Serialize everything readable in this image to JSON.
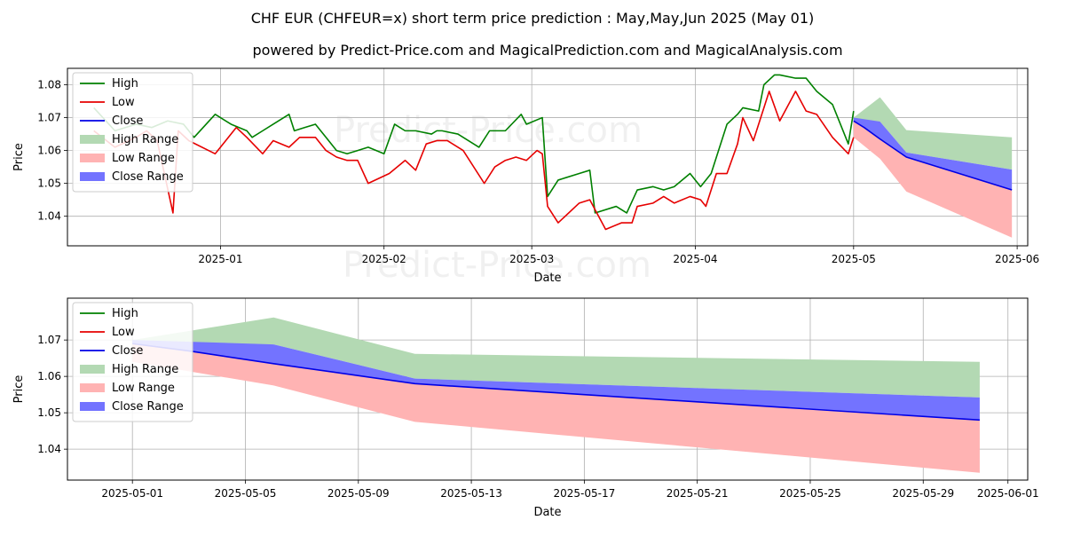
{
  "header": {
    "title": "CHF EUR (CHFEUR=x) short term price prediction : May,May,Jun 2025 (May 01)",
    "subtitle": "powered by Predict-Price.com and MagicalPrediction.com and MagicalAnalysis.com"
  },
  "watermark": "Predict-Price.com",
  "colors": {
    "high": "#008000",
    "low": "#e60000",
    "close": "#0000e6",
    "high_range": "#b3d9b3",
    "low_range": "#ffb3b3",
    "close_range": "#7373ff"
  },
  "chart_data": [
    {
      "type": "line",
      "xlabel": "Date",
      "ylabel": "Price",
      "ylim": [
        1.031,
        1.085
      ],
      "legend_position": "top-left",
      "grid": true,
      "x_ticks": [
        "2025-01",
        "2025-02",
        "2025-03",
        "2025-04",
        "2025-05",
        "2025-06"
      ],
      "y_ticks": [
        1.04,
        1.05,
        1.06,
        1.07,
        1.08
      ],
      "legend": [
        "High",
        "Low",
        "Close",
        "High Range",
        "Low Range",
        "Close Range"
      ],
      "series": [
        {
          "name": "High",
          "x": [
            "2024-12-08",
            "2024-12-12",
            "2024-12-16",
            "2024-12-19",
            "2024-12-22",
            "2024-12-25",
            "2024-12-27",
            "2024-12-31",
            "2025-01-03",
            "2025-01-06",
            "2025-01-07",
            "2025-01-09",
            "2025-01-11",
            "2025-01-14",
            "2025-01-15",
            "2025-01-17",
            "2025-01-19",
            "2025-01-21",
            "2025-01-23",
            "2025-01-25",
            "2025-01-27",
            "2025-01-29",
            "2025-02-01",
            "2025-02-03",
            "2025-02-05",
            "2025-02-07",
            "2025-02-10",
            "2025-02-11",
            "2025-02-12",
            "2025-02-15",
            "2025-02-19",
            "2025-02-21",
            "2025-02-24",
            "2025-02-27",
            "2025-02-28",
            "2025-03-03",
            "2025-03-04",
            "2025-03-06",
            "2025-03-10",
            "2025-03-12",
            "2025-03-13",
            "2025-03-17",
            "2025-03-19",
            "2025-03-21",
            "2025-03-24",
            "2025-03-26",
            "2025-03-28",
            "2025-03-31",
            "2025-04-02",
            "2025-04-04",
            "2025-04-07",
            "2025-04-09",
            "2025-04-10",
            "2025-04-13",
            "2025-04-14",
            "2025-04-16",
            "2025-04-17",
            "2025-04-20",
            "2025-04-22",
            "2025-04-24",
            "2025-04-27",
            "2025-04-30",
            "2025-05-01"
          ],
          "values": [
            1.073,
            1.066,
            1.068,
            1.067,
            1.069,
            1.068,
            1.064,
            1.071,
            1.068,
            1.066,
            1.064,
            1.066,
            1.068,
            1.071,
            1.066,
            1.067,
            1.068,
            1.064,
            1.06,
            1.059,
            1.06,
            1.061,
            1.059,
            1.068,
            1.066,
            1.066,
            1.065,
            1.066,
            1.066,
            1.065,
            1.061,
            1.066,
            1.066,
            1.071,
            1.068,
            1.07,
            1.046,
            1.051,
            1.053,
            1.054,
            1.041,
            1.043,
            1.041,
            1.048,
            1.049,
            1.048,
            1.049,
            1.053,
            1.049,
            1.053,
            1.068,
            1.071,
            1.073,
            1.072,
            1.08,
            1.083,
            1.083,
            1.082,
            1.082,
            1.078,
            1.074,
            1.062,
            1.072
          ]
        },
        {
          "name": "Low",
          "x": [
            "2024-12-08",
            "2024-12-12",
            "2024-12-16",
            "2024-12-18",
            "2024-12-20",
            "2024-12-23",
            "2024-12-24",
            "2024-12-26",
            "2024-12-31",
            "2025-01-02",
            "2025-01-04",
            "2025-01-06",
            "2025-01-09",
            "2025-01-11",
            "2025-01-14",
            "2025-01-16",
            "2025-01-19",
            "2025-01-21",
            "2025-01-23",
            "2025-01-25",
            "2025-01-27",
            "2025-01-29",
            "2025-02-02",
            "2025-02-05",
            "2025-02-07",
            "2025-02-09",
            "2025-02-11",
            "2025-02-13",
            "2025-02-16",
            "2025-02-20",
            "2025-02-22",
            "2025-02-24",
            "2025-02-26",
            "2025-02-28",
            "2025-03-02",
            "2025-03-03",
            "2025-03-04",
            "2025-03-06",
            "2025-03-10",
            "2025-03-12",
            "2025-03-14",
            "2025-03-15",
            "2025-03-18",
            "2025-03-20",
            "2025-03-21",
            "2025-03-24",
            "2025-03-26",
            "2025-03-28",
            "2025-03-31",
            "2025-04-02",
            "2025-04-03",
            "2025-04-05",
            "2025-04-07",
            "2025-04-09",
            "2025-04-10",
            "2025-04-12",
            "2025-04-14",
            "2025-04-15",
            "2025-04-17",
            "2025-04-20",
            "2025-04-22",
            "2025-04-24",
            "2025-04-27",
            "2025-04-30",
            "2025-05-01"
          ],
          "values": [
            1.066,
            1.061,
            1.064,
            1.066,
            1.063,
            1.041,
            1.066,
            1.063,
            1.059,
            1.063,
            1.067,
            1.064,
            1.059,
            1.063,
            1.061,
            1.064,
            1.064,
            1.06,
            1.058,
            1.057,
            1.057,
            1.05,
            1.053,
            1.057,
            1.054,
            1.062,
            1.063,
            1.063,
            1.06,
            1.05,
            1.055,
            1.057,
            1.058,
            1.057,
            1.06,
            1.059,
            1.043,
            1.038,
            1.044,
            1.045,
            1.039,
            1.036,
            1.038,
            1.038,
            1.043,
            1.044,
            1.046,
            1.044,
            1.046,
            1.045,
            1.043,
            1.053,
            1.053,
            1.062,
            1.07,
            1.063,
            1.073,
            1.078,
            1.069,
            1.078,
            1.072,
            1.071,
            1.064,
            1.059,
            1.064
          ]
        },
        {
          "name": "Close",
          "x": [
            "2025-05-01",
            "2025-05-03",
            "2025-05-06",
            "2025-05-11",
            "2025-05-31"
          ],
          "values": [
            1.069,
            1.067,
            1.0635,
            1.058,
            1.048
          ]
        },
        {
          "name": "High Range",
          "x": [
            "2025-05-01",
            "2025-05-06",
            "2025-05-11",
            "2025-05-31"
          ],
          "upper": [
            1.07,
            1.0762,
            1.0662,
            1.064
          ],
          "lower": [
            1.069,
            1.0688,
            1.0594,
            1.0542
          ]
        },
        {
          "name": "Low Range",
          "x": [
            "2025-05-01",
            "2025-05-06",
            "2025-05-11",
            "2025-05-31"
          ],
          "upper": [
            1.069,
            1.0635,
            1.058,
            1.048
          ],
          "lower": [
            1.064,
            1.0575,
            1.0475,
            1.0335
          ]
        },
        {
          "name": "Close Range",
          "x": [
            "2025-05-01",
            "2025-05-06",
            "2025-05-11",
            "2025-05-31"
          ],
          "upper": [
            1.07,
            1.0688,
            1.0594,
            1.0542
          ],
          "lower": [
            1.069,
            1.0635,
            1.058,
            1.048
          ]
        }
      ]
    },
    {
      "type": "line",
      "xlabel": "Date",
      "ylabel": "Price",
      "ylim": [
        1.0315,
        1.0815
      ],
      "legend_position": "top-left",
      "grid": true,
      "x_ticks": [
        "2025-05-01",
        "2025-05-05",
        "2025-05-09",
        "2025-05-13",
        "2025-05-17",
        "2025-05-21",
        "2025-05-25",
        "2025-05-29",
        "2025-06-01"
      ],
      "y_ticks": [
        1.04,
        1.05,
        1.06,
        1.07
      ],
      "legend": [
        "High",
        "Low",
        "Close",
        "High Range",
        "Low Range",
        "Close Range"
      ],
      "series": [
        {
          "name": "Close",
          "x": [
            "2025-05-01",
            "2025-05-03",
            "2025-05-06",
            "2025-05-11",
            "2025-05-31"
          ],
          "values": [
            1.069,
            1.067,
            1.0635,
            1.058,
            1.048
          ]
        },
        {
          "name": "High Range",
          "x": [
            "2025-05-01",
            "2025-05-06",
            "2025-05-11",
            "2025-05-31"
          ],
          "upper": [
            1.07,
            1.0762,
            1.0662,
            1.064
          ],
          "lower": [
            1.069,
            1.0688,
            1.0594,
            1.0542
          ]
        },
        {
          "name": "Low Range",
          "x": [
            "2025-05-01",
            "2025-05-06",
            "2025-05-11",
            "2025-05-31"
          ],
          "upper": [
            1.069,
            1.0635,
            1.058,
            1.048
          ],
          "lower": [
            1.064,
            1.0575,
            1.0475,
            1.0335
          ]
        },
        {
          "name": "Close Range",
          "x": [
            "2025-05-01",
            "2025-05-06",
            "2025-05-11",
            "2025-05-31"
          ],
          "upper": [
            1.07,
            1.0688,
            1.0594,
            1.0542
          ],
          "lower": [
            1.069,
            1.0635,
            1.058,
            1.048
          ]
        }
      ]
    }
  ]
}
